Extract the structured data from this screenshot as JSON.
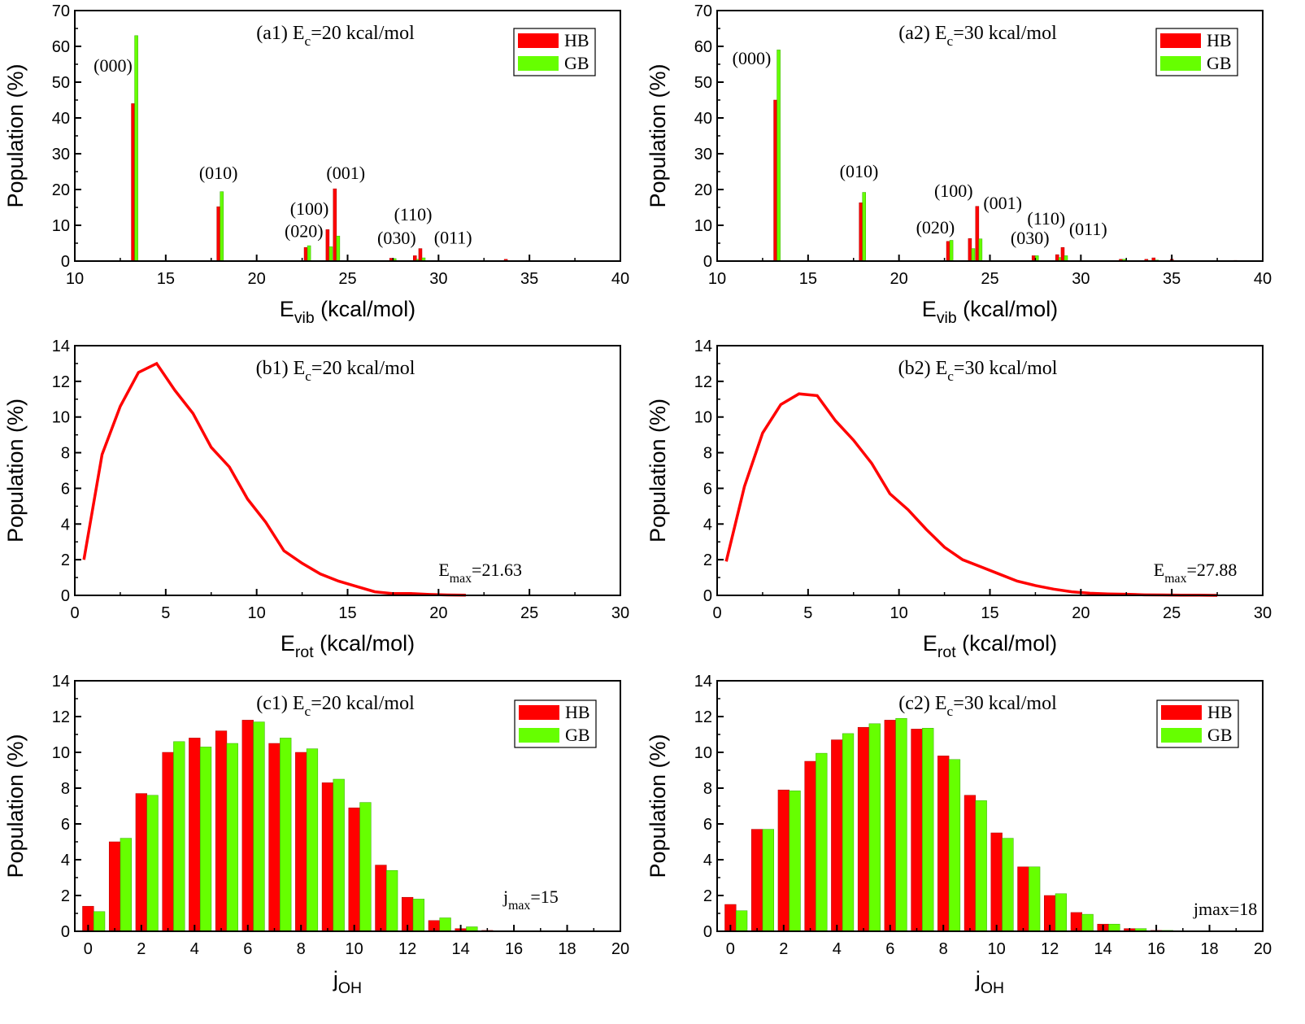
{
  "colors": {
    "HB": "#ff0000",
    "GB": "#66ff00"
  },
  "chart_data": [
    {
      "panel": "a1",
      "type": "bar",
      "title": {
        "pre": "(a1) E",
        "sub": "c",
        "post": "=20 kcal/mol"
      },
      "xlabel": {
        "pre": "E",
        "sub": "vib",
        "post": " (kcal/mol)"
      },
      "ylabel": "Population (%)",
      "xlim": [
        10,
        40
      ],
      "xticks": [
        10,
        15,
        20,
        25,
        30,
        35,
        40
      ],
      "ylim": [
        0,
        70
      ],
      "yticks": [
        0,
        10,
        20,
        30,
        40,
        50,
        60,
        70
      ],
      "bar_width": 0.18,
      "legend": [
        "HB",
        "GB"
      ],
      "legend_position": "top-right",
      "bars": [
        {
          "x": 13.2,
          "hb": 44,
          "gb": 63
        },
        {
          "x": 17.9,
          "hb": 15.2,
          "gb": 19.4
        },
        {
          "x": 22.7,
          "hb": 3.8,
          "gb": 4.3
        },
        {
          "x": 23.9,
          "hb": 8.8,
          "gb": 4
        },
        {
          "x": 24.3,
          "hb": 20.2,
          "gb": 7
        },
        {
          "x": 27.4,
          "hb": 0.8,
          "gb": 0.7
        },
        {
          "x": 28.7,
          "hb": 1.5,
          "gb": 0.5
        },
        {
          "x": 29.0,
          "hb": 3.5,
          "gb": 0.9
        },
        {
          "x": 33.7,
          "hb": 0.5,
          "gb": 0.1
        },
        {
          "x": 34.9,
          "hb": 0.2,
          "gb": 0.1
        }
      ],
      "annotations": [
        {
          "text": "(000)",
          "x": 12.1,
          "y": 53
        },
        {
          "text": "(010)",
          "x": 17.9,
          "y": 23
        },
        {
          "text": "(001)",
          "x": 24.9,
          "y": 23
        },
        {
          "text": "(100)",
          "x": 22.9,
          "y": 13
        },
        {
          "text": "(020)",
          "x": 22.6,
          "y": 6.7
        },
        {
          "text": "(030)",
          "x": 27.7,
          "y": 4.8
        },
        {
          "text": "(110)",
          "x": 28.6,
          "y": 11.4
        },
        {
          "text": "(011)",
          "x": 30.8,
          "y": 4.9
        }
      ]
    },
    {
      "panel": "a2",
      "type": "bar",
      "title": {
        "pre": "(a2) E",
        "sub": "c",
        "post": "=30 kcal/mol"
      },
      "xlabel": {
        "pre": "E",
        "sub": "vib",
        "post": " (kcal/mol)"
      },
      "ylabel": "Population (%)",
      "xlim": [
        10,
        40
      ],
      "xticks": [
        10,
        15,
        20,
        25,
        30,
        35,
        40
      ],
      "ylim": [
        0,
        70
      ],
      "yticks": [
        0,
        10,
        20,
        30,
        40,
        50,
        60,
        70
      ],
      "bar_width": 0.18,
      "legend": [
        "HB",
        "GB"
      ],
      "legend_position": "top-right",
      "bars": [
        {
          "x": 13.2,
          "hb": 45,
          "gb": 59
        },
        {
          "x": 17.9,
          "hb": 16.3,
          "gb": 19.2
        },
        {
          "x": 22.7,
          "hb": 5.5,
          "gb": 5.8
        },
        {
          "x": 23.9,
          "hb": 6.3,
          "gb": 3.5
        },
        {
          "x": 24.3,
          "hb": 15.3,
          "gb": 6.2
        },
        {
          "x": 27.4,
          "hb": 1.5,
          "gb": 1.5
        },
        {
          "x": 28.7,
          "hb": 1.8,
          "gb": 1.0
        },
        {
          "x": 29.0,
          "hb": 3.8,
          "gb": 1.5
        },
        {
          "x": 32.2,
          "hb": 0.5,
          "gb": 0.5
        },
        {
          "x": 33.6,
          "hb": 0.5,
          "gb": 0.2
        },
        {
          "x": 34.0,
          "hb": 0.9,
          "gb": 0.3
        },
        {
          "x": 35.0,
          "hb": 0.5,
          "gb": 0.1
        },
        {
          "x": 38.5,
          "hb": 0.2,
          "gb": 0
        }
      ],
      "annotations": [
        {
          "text": "(000)",
          "x": 11.9,
          "y": 55
        },
        {
          "text": "(010)",
          "x": 17.8,
          "y": 23.4
        },
        {
          "text": "(100)",
          "x": 23.0,
          "y": 18
        },
        {
          "text": "(001)",
          "x": 25.7,
          "y": 14.5
        },
        {
          "text": "(020)",
          "x": 22.0,
          "y": 7.7
        },
        {
          "text": "(030)",
          "x": 27.2,
          "y": 4.8
        },
        {
          "text": "(110)",
          "x": 28.1,
          "y": 10.2
        },
        {
          "text": "(011)",
          "x": 30.4,
          "y": 7.3
        }
      ]
    },
    {
      "panel": "b1",
      "type": "line",
      "title": {
        "pre": "(b1) E",
        "sub": "c",
        "post": "=20 kcal/mol"
      },
      "xlabel": {
        "pre": "E",
        "sub": "rot",
        "post": " (kcal/mol)"
      },
      "ylabel": "Population (%)",
      "xlim": [
        0,
        30
      ],
      "xticks": [
        0,
        5,
        10,
        15,
        20,
        25,
        30
      ],
      "ylim": [
        0,
        14
      ],
      "yticks": [
        0,
        2,
        4,
        6,
        8,
        10,
        12,
        14
      ],
      "x": [
        0.5,
        1.5,
        2.5,
        3.5,
        4.5,
        5.5,
        6.5,
        7.5,
        8.5,
        9.5,
        10.5,
        11.5,
        12.5,
        13.5,
        14.5,
        15.5,
        16.5,
        17.5,
        18.5,
        19.5,
        20.5,
        21.5
      ],
      "y": [
        2.0,
        7.9,
        10.6,
        12.5,
        13.0,
        11.5,
        10.2,
        8.3,
        7.2,
        5.4,
        4.1,
        2.5,
        1.8,
        1.2,
        0.8,
        0.5,
        0.2,
        0.1,
        0.1,
        0.05,
        0.02,
        0.01
      ],
      "annotations": [
        {
          "pre": "E",
          "sub": "max",
          "post": "=21.63",
          "x": 20,
          "y": 1.1
        }
      ]
    },
    {
      "panel": "b2",
      "type": "line",
      "title": {
        "pre": "(b2) E",
        "sub": "c",
        "post": "=30 kcal/mol"
      },
      "xlabel": {
        "pre": "E",
        "sub": "rot",
        "post": " (kcal/mol)"
      },
      "ylabel": "Population (%)",
      "xlim": [
        0,
        30
      ],
      "xticks": [
        0,
        5,
        10,
        15,
        20,
        25,
        30
      ],
      "ylim": [
        0,
        14
      ],
      "yticks": [
        0,
        2,
        4,
        6,
        8,
        10,
        12,
        14
      ],
      "x": [
        0.5,
        1.5,
        2.5,
        3.5,
        4.5,
        5.5,
        6.5,
        7.5,
        8.5,
        9.5,
        10.5,
        11.5,
        12.5,
        13.5,
        14.5,
        15.5,
        16.5,
        17.5,
        18.5,
        19.5,
        20.5,
        21.5,
        22.5,
        23.5,
        24.5,
        25.5,
        26.5,
        27.5
      ],
      "y": [
        1.9,
        6.1,
        9.1,
        10.7,
        11.3,
        11.2,
        9.8,
        8.7,
        7.4,
        5.7,
        4.8,
        3.7,
        2.7,
        2.0,
        1.6,
        1.2,
        0.8,
        0.55,
        0.35,
        0.2,
        0.12,
        0.08,
        0.06,
        0.03,
        0.02,
        0.01,
        0.01,
        0
      ],
      "annotations": [
        {
          "pre": "E",
          "sub": "max",
          "post": "=27.88",
          "x": 24,
          "y": 1.1
        }
      ]
    },
    {
      "panel": "c1",
      "type": "bar",
      "title": {
        "pre": "(c1) E",
        "sub": "c",
        "post": "=20 kcal/mol"
      },
      "xlabel": {
        "pre": "j",
        "sub": "OH",
        "post": ""
      },
      "ylabel": "Population (%)",
      "xlim": [
        -0.5,
        20
      ],
      "xticks": [
        0,
        2,
        4,
        6,
        8,
        10,
        12,
        14,
        16,
        18,
        20
      ],
      "ylim": [
        0,
        14
      ],
      "yticks": [
        0,
        2,
        4,
        6,
        8,
        10,
        12,
        14
      ],
      "bar_width": 0.42,
      "legend": [
        "HB",
        "GB"
      ],
      "legend_position": "top-right",
      "bars": [
        {
          "x": 0,
          "hb": 1.4,
          "gb": 1.1
        },
        {
          "x": 1,
          "hb": 5.0,
          "gb": 5.2
        },
        {
          "x": 2,
          "hb": 7.7,
          "gb": 7.6
        },
        {
          "x": 3,
          "hb": 10.0,
          "gb": 10.6
        },
        {
          "x": 4,
          "hb": 10.8,
          "gb": 10.3
        },
        {
          "x": 5,
          "hb": 11.2,
          "gb": 10.5
        },
        {
          "x": 6,
          "hb": 11.8,
          "gb": 11.7
        },
        {
          "x": 7,
          "hb": 10.5,
          "gb": 10.8
        },
        {
          "x": 8,
          "hb": 10.0,
          "gb": 10.2
        },
        {
          "x": 9,
          "hb": 8.3,
          "gb": 8.5
        },
        {
          "x": 10,
          "hb": 6.9,
          "gb": 7.2
        },
        {
          "x": 11,
          "hb": 3.7,
          "gb": 3.4
        },
        {
          "x": 12,
          "hb": 1.9,
          "gb": 1.8
        },
        {
          "x": 13,
          "hb": 0.6,
          "gb": 0.75
        },
        {
          "x": 14,
          "hb": 0.15,
          "gb": 0.25
        },
        {
          "x": 15,
          "hb": 0.05,
          "gb": 0.02
        }
      ],
      "annotations": [
        {
          "pre": "j",
          "sub": "max",
          "post": "=15",
          "x": 15.6,
          "y": 1.6
        }
      ]
    },
    {
      "panel": "c2",
      "type": "bar",
      "title": {
        "pre": "(c2) E",
        "sub": "c",
        "post": "=30 kcal/mol"
      },
      "xlabel": {
        "pre": "j",
        "sub": "OH",
        "post": ""
      },
      "ylabel": "Population (%)",
      "xlim": [
        -0.5,
        20
      ],
      "xticks": [
        0,
        2,
        4,
        6,
        8,
        10,
        12,
        14,
        16,
        18,
        20
      ],
      "ylim": [
        0,
        14
      ],
      "yticks": [
        0,
        2,
        4,
        6,
        8,
        10,
        12,
        14
      ],
      "bar_width": 0.42,
      "legend": [
        "HB",
        "GB"
      ],
      "legend_position": "top-right",
      "bars": [
        {
          "x": 0,
          "hb": 1.5,
          "gb": 1.15
        },
        {
          "x": 1,
          "hb": 5.7,
          "gb": 5.7
        },
        {
          "x": 2,
          "hb": 7.9,
          "gb": 7.85
        },
        {
          "x": 3,
          "hb": 9.5,
          "gb": 9.95
        },
        {
          "x": 4,
          "hb": 10.7,
          "gb": 11.05
        },
        {
          "x": 5,
          "hb": 11.4,
          "gb": 11.6
        },
        {
          "x": 6,
          "hb": 11.8,
          "gb": 11.9
        },
        {
          "x": 7,
          "hb": 11.3,
          "gb": 11.35
        },
        {
          "x": 8,
          "hb": 9.8,
          "gb": 9.6
        },
        {
          "x": 9,
          "hb": 7.6,
          "gb": 7.3
        },
        {
          "x": 10,
          "hb": 5.5,
          "gb": 5.2
        },
        {
          "x": 11,
          "hb": 3.6,
          "gb": 3.6
        },
        {
          "x": 12,
          "hb": 2.0,
          "gb": 2.1
        },
        {
          "x": 13,
          "hb": 1.05,
          "gb": 0.95
        },
        {
          "x": 14,
          "hb": 0.4,
          "gb": 0.4
        },
        {
          "x": 15,
          "hb": 0.15,
          "gb": 0.15
        },
        {
          "x": 16,
          "hb": 0.05,
          "gb": 0.05
        },
        {
          "x": 17,
          "hb": 0.02,
          "gb": 0.02
        },
        {
          "x": 18,
          "hb": 0.01,
          "gb": 0.01
        }
      ],
      "annotations": [
        {
          "pre": "jmax=18",
          "sub": "",
          "post": "",
          "x": 17.4,
          "y": 0.9
        }
      ]
    }
  ]
}
